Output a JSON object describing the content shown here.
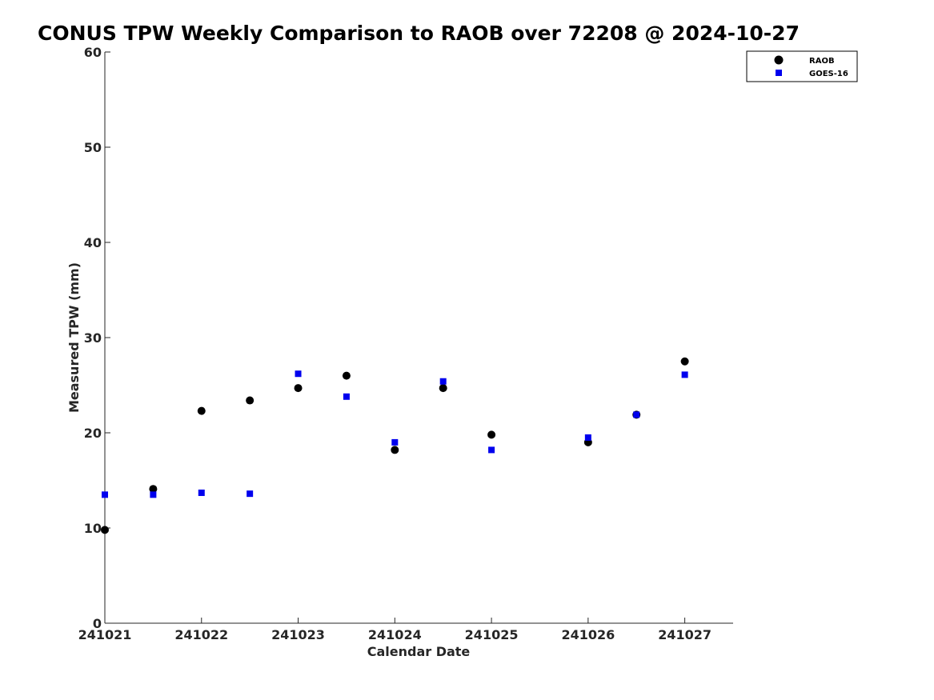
{
  "chart_data": {
    "type": "scatter",
    "title": "CONUS TPW Weekly Comparison to RAOB over 72208 @ 2024-10-27",
    "xlabel": "Calendar Date",
    "ylabel": "Measured TPW (mm)",
    "xlim": [
      0,
      6.5
    ],
    "ylim": [
      0,
      60
    ],
    "grid": false,
    "legend_position": "top-right",
    "x_ticks": [
      0,
      1,
      2,
      3,
      4,
      5,
      6
    ],
    "x_tick_labels": [
      "241021",
      "241022",
      "241023",
      "241024",
      "241025",
      "241026",
      "241027"
    ],
    "y_ticks": [
      0,
      10,
      20,
      30,
      40,
      50,
      60
    ],
    "y_tick_labels": [
      "0",
      "10",
      "20",
      "30",
      "40",
      "50",
      "60"
    ],
    "series": [
      {
        "name": "RAOB",
        "marker": "circle",
        "color": "#000000",
        "x": [
          0,
          0.5,
          1,
          1.5,
          2,
          2.5,
          3,
          3.5,
          4,
          5,
          5.5,
          6
        ],
        "y": [
          9.8,
          14.1,
          22.3,
          23.4,
          24.7,
          26.0,
          18.2,
          24.7,
          19.8,
          19.0,
          21.9,
          27.5
        ]
      },
      {
        "name": "GOES-16",
        "marker": "square",
        "color": "#0000ee",
        "x": [
          0,
          0.5,
          1,
          1.5,
          2,
          2.5,
          3,
          3.5,
          4,
          5,
          5.5,
          6
        ],
        "y": [
          13.5,
          13.5,
          13.7,
          13.6,
          26.2,
          23.8,
          19.0,
          25.4,
          18.2,
          19.5,
          21.9,
          26.1
        ]
      }
    ]
  }
}
